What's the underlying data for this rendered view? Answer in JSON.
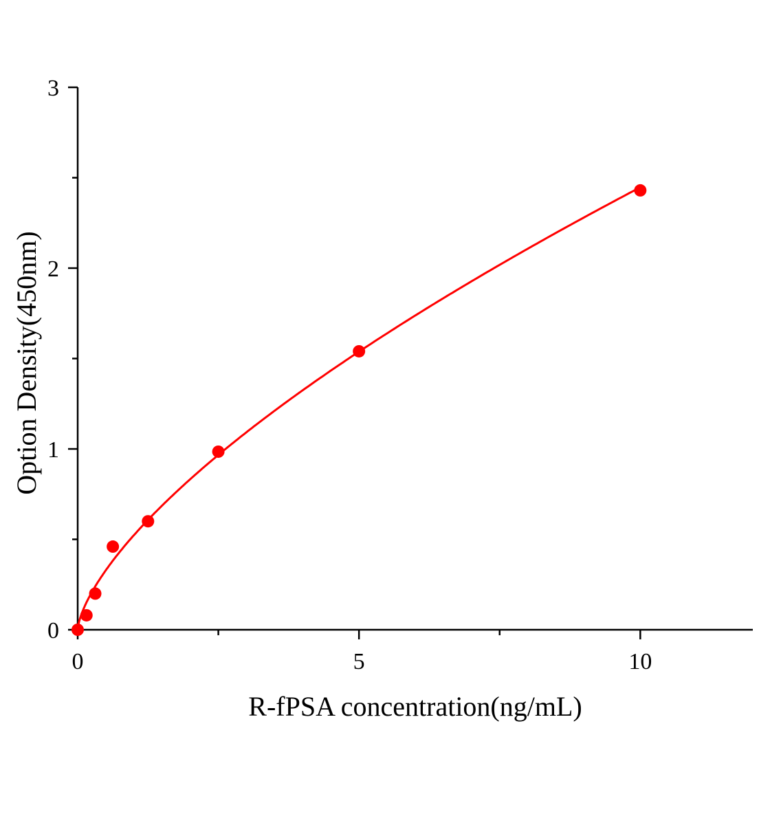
{
  "chart_data": {
    "type": "scatter",
    "title": "",
    "xlabel": "R-fPSA concentration(ng/mL)",
    "ylabel": "Option Density(450nm)",
    "xlim": [
      0,
      12
    ],
    "ylim": [
      0,
      3
    ],
    "x_ticks": [
      0,
      5,
      10
    ],
    "x_tick_labels": [
      "0",
      "5",
      "10"
    ],
    "x_minor_ticks": [
      2.5,
      7.5
    ],
    "y_ticks": [
      0,
      1,
      2,
      3
    ],
    "y_tick_labels": [
      "0",
      "1",
      "2",
      "3"
    ],
    "y_minor_ticks": [
      0.5,
      1.5,
      2.5
    ],
    "grid": false,
    "legend": "none",
    "series": [
      {
        "x": [
          0,
          0.156,
          0.312,
          0.625,
          1.25,
          2.5,
          5,
          10
        ],
        "y": [
          0.0,
          0.08,
          0.2,
          0.46,
          0.6,
          0.985,
          1.54,
          2.43
        ],
        "marker": "filled-circle",
        "fit_line": "smooth curve",
        "color": "#ff0000"
      }
    ]
  }
}
